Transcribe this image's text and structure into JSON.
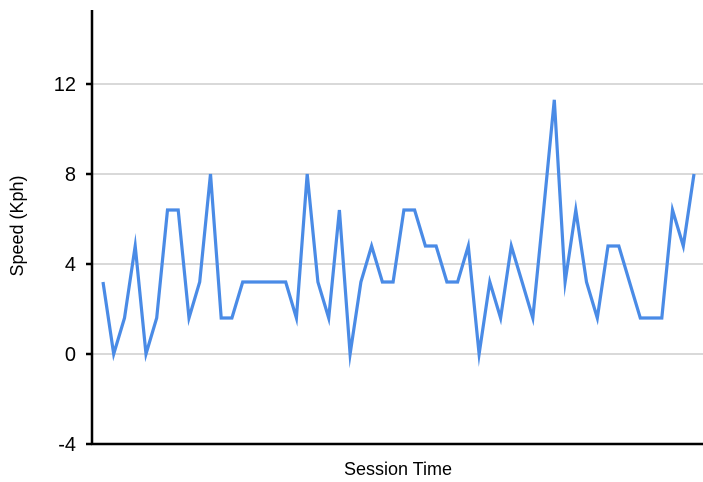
{
  "chart_data": {
    "type": "line",
    "title": "",
    "xlabel": "Session Time",
    "ylabel": "Speed (Kph)",
    "ylim": [
      -4,
      15
    ],
    "yticks": [
      -4,
      0,
      4,
      8,
      12
    ],
    "grid": true,
    "legend": "none",
    "series_color": "#4a8be6",
    "series": [
      {
        "values": [
          3.2,
          0,
          1.6,
          4.8,
          0,
          1.6,
          6.4,
          6.4,
          1.6,
          3.2,
          8,
          1.6,
          1.6,
          3.2,
          3.2,
          3.2,
          3.2,
          3.2,
          1.6,
          8,
          3.2,
          1.6,
          6.4,
          0,
          3.2,
          4.8,
          3.2,
          3.2,
          6.4,
          6.4,
          4.8,
          4.8,
          3.2,
          3.2,
          4.8,
          0,
          3.2,
          1.6,
          4.8,
          3.2,
          1.6,
          6.4,
          11.3,
          3.2,
          6.4,
          3.2,
          1.6,
          4.8,
          4.8,
          3.2,
          1.6,
          1.6,
          1.6,
          6.4,
          4.8,
          8
        ]
      }
    ]
  }
}
